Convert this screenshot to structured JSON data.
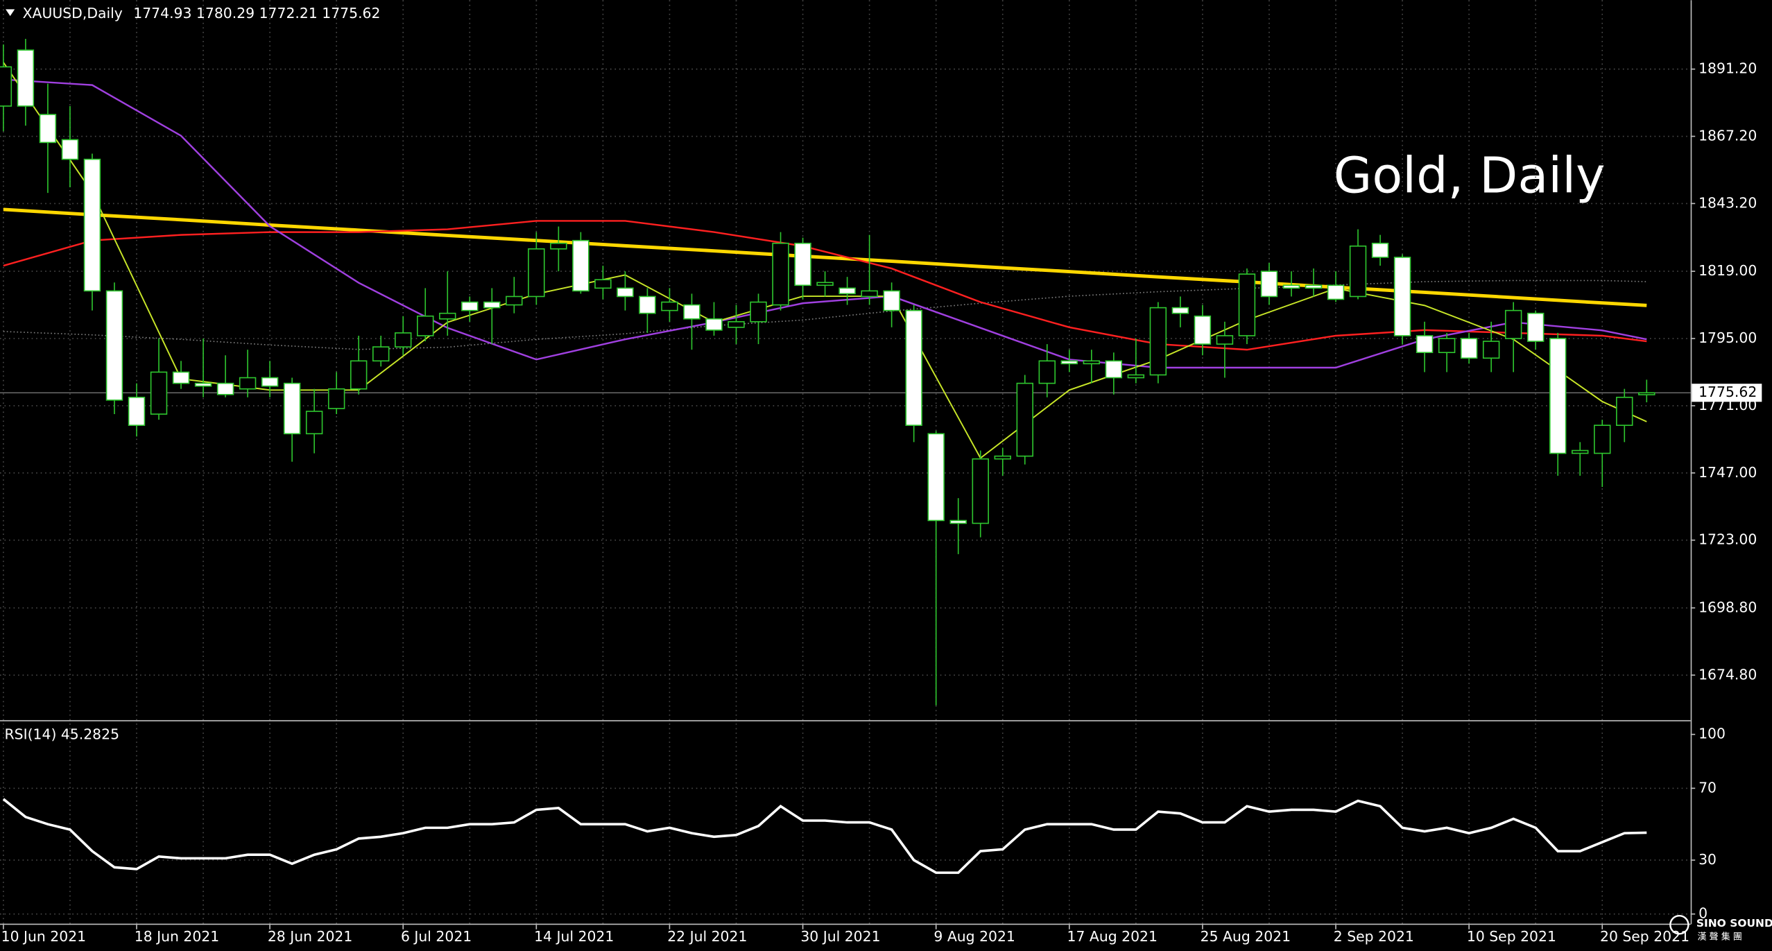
{
  "chart_data": [
    {
      "type": "candlestick",
      "title": "XAUUSD,Daily",
      "ohlc": "1774.93 1780.29 1772.21 1775.62",
      "annotation": "Gold, Daily",
      "categories": [
        "10 Jun 2021",
        null,
        null,
        null,
        null,
        null,
        "18 Jun 2021",
        null,
        null,
        null,
        null,
        null,
        "28 Jun 2021",
        null,
        null,
        null,
        null,
        null,
        "6 Jul 2021",
        null,
        null,
        null,
        null,
        null,
        "14 Jul 2021",
        null,
        null,
        null,
        null,
        null,
        "22 Jul 2021",
        null,
        null,
        null,
        null,
        null,
        "30 Jul 2021",
        null,
        null,
        null,
        null,
        null,
        "9 Aug 2021",
        null,
        null,
        null,
        null,
        null,
        "17 Aug 2021",
        null,
        null,
        null,
        null,
        null,
        "25 Aug 2021",
        null,
        null,
        null,
        null,
        null,
        "2 Sep 2021",
        null,
        null,
        null,
        null,
        null,
        "10 Sep 2021",
        null,
        null,
        null,
        null,
        null,
        "20 Sep 2021",
        null,
        null
      ],
      "open": [
        1878,
        1898,
        1875,
        1866,
        1859,
        1812,
        1774,
        1768,
        1783,
        1779,
        1779,
        1777,
        1781,
        1779,
        1761,
        1770,
        1777,
        1787,
        1792,
        1796,
        1802,
        1808,
        1808,
        1807,
        1810,
        1827,
        1830,
        1813,
        1813,
        1810,
        1805,
        1807,
        1802,
        1799,
        1801,
        1807,
        1829,
        1814,
        1813,
        1810,
        1812,
        1805,
        1761,
        1730,
        1729,
        1752,
        1753,
        1779,
        1787,
        1786,
        1787,
        1781,
        1782,
        1806,
        1803,
        1793,
        1796,
        1819,
        1814,
        1814,
        1814,
        1810,
        1829,
        1824,
        1796,
        1790,
        1795,
        1788,
        1795,
        1804,
        1795,
        1754,
        1754,
        1764,
        1774.93
      ],
      "high": [
        1900,
        1902,
        1886,
        1878,
        1861,
        1815,
        1779,
        1795,
        1787,
        1795,
        1789,
        1791,
        1787,
        1781,
        1777,
        1783,
        1796,
        1796,
        1803,
        1813,
        1819,
        1810,
        1813,
        1817,
        1833,
        1835,
        1833,
        1821,
        1819,
        1813,
        1813,
        1811,
        1808,
        1807,
        1811,
        1833,
        1831,
        1819,
        1817,
        1832,
        1815,
        1807,
        1762,
        1738,
        1755,
        1756,
        1782,
        1793,
        1791,
        1791,
        1790,
        1795,
        1808,
        1810,
        1807,
        1801,
        1820,
        1822,
        1819,
        1820,
        1819,
        1834,
        1832,
        1825,
        1801,
        1797,
        1797,
        1801,
        1808,
        1805,
        1797,
        1758,
        1766,
        1777,
        1780.29
      ],
      "low": [
        1869,
        1871,
        1847,
        1849,
        1805,
        1768,
        1760,
        1766,
        1777,
        1774,
        1774,
        1774,
        1774,
        1751,
        1754,
        1768,
        1775,
        1785,
        1789,
        1794,
        1796,
        1801,
        1793,
        1804,
        1807,
        1819,
        1811,
        1809,
        1805,
        1797,
        1801,
        1791,
        1796,
        1793,
        1793,
        1805,
        1809,
        1810,
        1807,
        1807,
        1799,
        1758,
        1664,
        1718,
        1724,
        1746,
        1750,
        1774,
        1783,
        1779,
        1775,
        1779,
        1779,
        1799,
        1789,
        1781,
        1793,
        1807,
        1810,
        1810,
        1808,
        1809,
        1821,
        1793,
        1783,
        1783,
        1786,
        1783,
        1783,
        1791,
        1746,
        1746,
        1742,
        1758,
        1772.21
      ],
      "close": [
        1892,
        1878,
        1865,
        1859,
        1812,
        1773,
        1764,
        1783,
        1779,
        1778,
        1775,
        1781,
        1778,
        1761,
        1769,
        1777,
        1787,
        1792,
        1797,
        1803,
        1804,
        1805,
        1806,
        1810,
        1827,
        1829,
        1812,
        1816,
        1810,
        1804,
        1808,
        1802,
        1798,
        1801,
        1808,
        1829,
        1814,
        1815,
        1811,
        1812,
        1805,
        1764,
        1730,
        1729,
        1752,
        1753,
        1779,
        1787,
        1786,
        1787,
        1781,
        1782,
        1806,
        1804,
        1793,
        1796,
        1818,
        1810,
        1813,
        1813,
        1809,
        1828,
        1824,
        1796,
        1790,
        1795,
        1788,
        1794,
        1805,
        1794,
        1754,
        1755,
        1764,
        1774,
        1775.62
      ],
      "bull_color": "#000000",
      "bear_color": "#ffffff",
      "wick_color": "#2ec52e",
      "ylim": [
        1658.7,
        1915.8
      ],
      "yticks": [
        {
          "value": 1891.2,
          "label": "1891.20"
        },
        {
          "value": 1867.2,
          "label": "1867.20"
        },
        {
          "value": 1843.2,
          "label": "1843.20"
        },
        {
          "value": 1819,
          "label": "1819.00"
        },
        {
          "value": 1795,
          "label": "1795.00"
        },
        {
          "value": 1771,
          "label": "1771.00"
        },
        {
          "value": 1747,
          "label": "1747.00"
        },
        {
          "value": 1723,
          "label": "1723.00"
        },
        {
          "value": 1698.8,
          "label": "1698.80"
        },
        {
          "value": 1674.8,
          "label": "1674.80"
        }
      ],
      "grid": true,
      "last_price": {
        "value": 1775.62,
        "label": "1775.62"
      },
      "ma_x": [
        0,
        4,
        8,
        12,
        16,
        20,
        24,
        28,
        32,
        36,
        40,
        44,
        48,
        52,
        56,
        60,
        64,
        68,
        72,
        74
      ],
      "lines": [
        {
          "color": "#808080",
          "width": 1,
          "style": "dotted",
          "values": [
            1797.5,
            1796.3,
            1794.7,
            1792.7,
            1791.1,
            1791.9,
            1794.7,
            1796.7,
            1799.6,
            1801.6,
            1804.8,
            1807.6,
            1810.1,
            1811.7,
            1812.9,
            1814.1,
            1815.3,
            1815.7,
            1815.7,
            1815.3
          ]
        },
        {
          "color": "#ffd700",
          "width": 3,
          "style": "solid",
          "values": [
            1841.1,
            1839.2,
            1837.4,
            1835.5,
            1833.7,
            1831.8,
            1830.0,
            1828.1,
            1826.3,
            1824.4,
            1822.6,
            1820.7,
            1818.9,
            1817.0,
            1815.2,
            1813.3,
            1811.5,
            1809.6,
            1807.7,
            1806.8
          ]
        },
        {
          "color": "#ff2020",
          "width": 1.5,
          "style": "solid",
          "values": [
            1821,
            1830,
            1832,
            1833,
            1833,
            1834,
            1837,
            1837,
            1833,
            1828,
            1820,
            1808,
            1799,
            1793,
            1791,
            1796,
            1798,
            1797,
            1796,
            1794
          ]
        },
        {
          "color": "#a040e0",
          "width": 1.5,
          "style": "solid",
          "values": [
            1887.5,
            1885.5,
            1867.4,
            1835.1,
            1814.9,
            1798.8,
            1787.5,
            1794.7,
            1800.8,
            1807.6,
            1810.1,
            1798.8,
            1787.5,
            1784.6,
            1784.6,
            1784.6,
            1794.7,
            1800.8,
            1797.9,
            1794.7
          ]
        },
        {
          "color": "#c8e628",
          "width": 1.2,
          "style": "solid",
          "values": [
            1893.6,
            1847.2,
            1780.6,
            1776.6,
            1776.6,
            1800.8,
            1810.9,
            1817.7,
            1800.8,
            1810.1,
            1810.1,
            1752.3,
            1776.6,
            1787.5,
            1801.6,
            1812.9,
            1806.8,
            1794.7,
            1772.5,
            1765.3
          ]
        }
      ]
    },
    {
      "type": "line",
      "title": "RSI(14) 45.2825",
      "color": "#ffffff",
      "values": [
        64,
        54,
        50,
        47,
        35,
        26,
        25,
        32,
        31,
        31,
        31,
        33,
        33,
        28,
        33,
        36,
        42,
        43,
        45,
        48,
        48,
        50,
        50,
        51,
        58,
        59,
        50,
        50,
        50,
        46,
        48,
        45,
        43,
        44,
        49,
        60,
        52,
        52,
        51,
        51,
        47,
        30,
        23,
        23,
        35,
        36,
        47,
        50,
        50,
        50,
        47,
        47,
        57,
        56,
        51,
        51,
        60,
        57,
        58,
        58,
        57,
        63,
        60,
        48,
        46,
        48,
        45,
        48,
        53,
        48,
        35,
        35,
        40,
        45,
        45.2825
      ],
      "ylim": [
        -6,
        106
      ],
      "yticks": [
        100,
        70,
        30,
        0
      ],
      "grid": true
    }
  ],
  "logo": {
    "name": "SINO SOUND",
    "subtitle": "漢 聲 集 團"
  }
}
